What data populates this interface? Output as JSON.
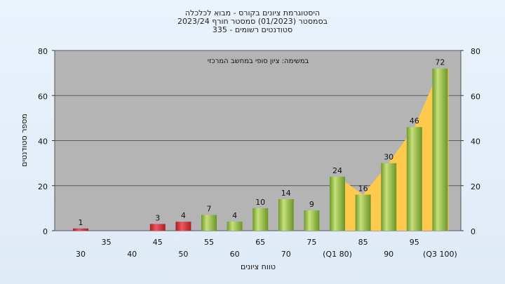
{
  "chart_data": {
    "type": "bar",
    "title_lines": [
      "היסטוגרמת ציונים בקורס - מבוא לכלכלה",
      "בסמסטר  (01/2023)  סמסטר חורף  2023/24",
      "סטודנטים רשומים - 335"
    ],
    "annotation": "במשימה: ציון סופי במחשב המרכזי",
    "xlabel": "טווח ציונים",
    "ylabel": "מספר סטודנטים",
    "ylim": [
      0,
      80
    ],
    "yticks": [
      0,
      20,
      40,
      60,
      80
    ],
    "grid": true,
    "categories": [
      "30",
      "35",
      "40",
      "45",
      "50",
      "55",
      "60",
      "65",
      "70",
      "75",
      "(Q1 80)",
      "85",
      "90",
      "95",
      "(Q3 100)"
    ],
    "tick_rows": [
      "low",
      "high",
      "low",
      "high",
      "low",
      "high",
      "low",
      "high",
      "low",
      "high",
      "low",
      "high",
      "low",
      "high",
      "low"
    ],
    "values": [
      1,
      null,
      null,
      3,
      4,
      7,
      4,
      10,
      14,
      9,
      24,
      16,
      30,
      46,
      72
    ],
    "bar_colors": [
      "red",
      null,
      null,
      "red",
      "red",
      "green",
      "green",
      "green",
      "green",
      "green",
      "green",
      "green",
      "green",
      "green",
      "green"
    ],
    "colors": {
      "plot_bg": "#b4b4b4",
      "red_bar": "#d9333a",
      "green_bar": "#8fbf3f",
      "area_fill": "#ffc94d"
    }
  }
}
